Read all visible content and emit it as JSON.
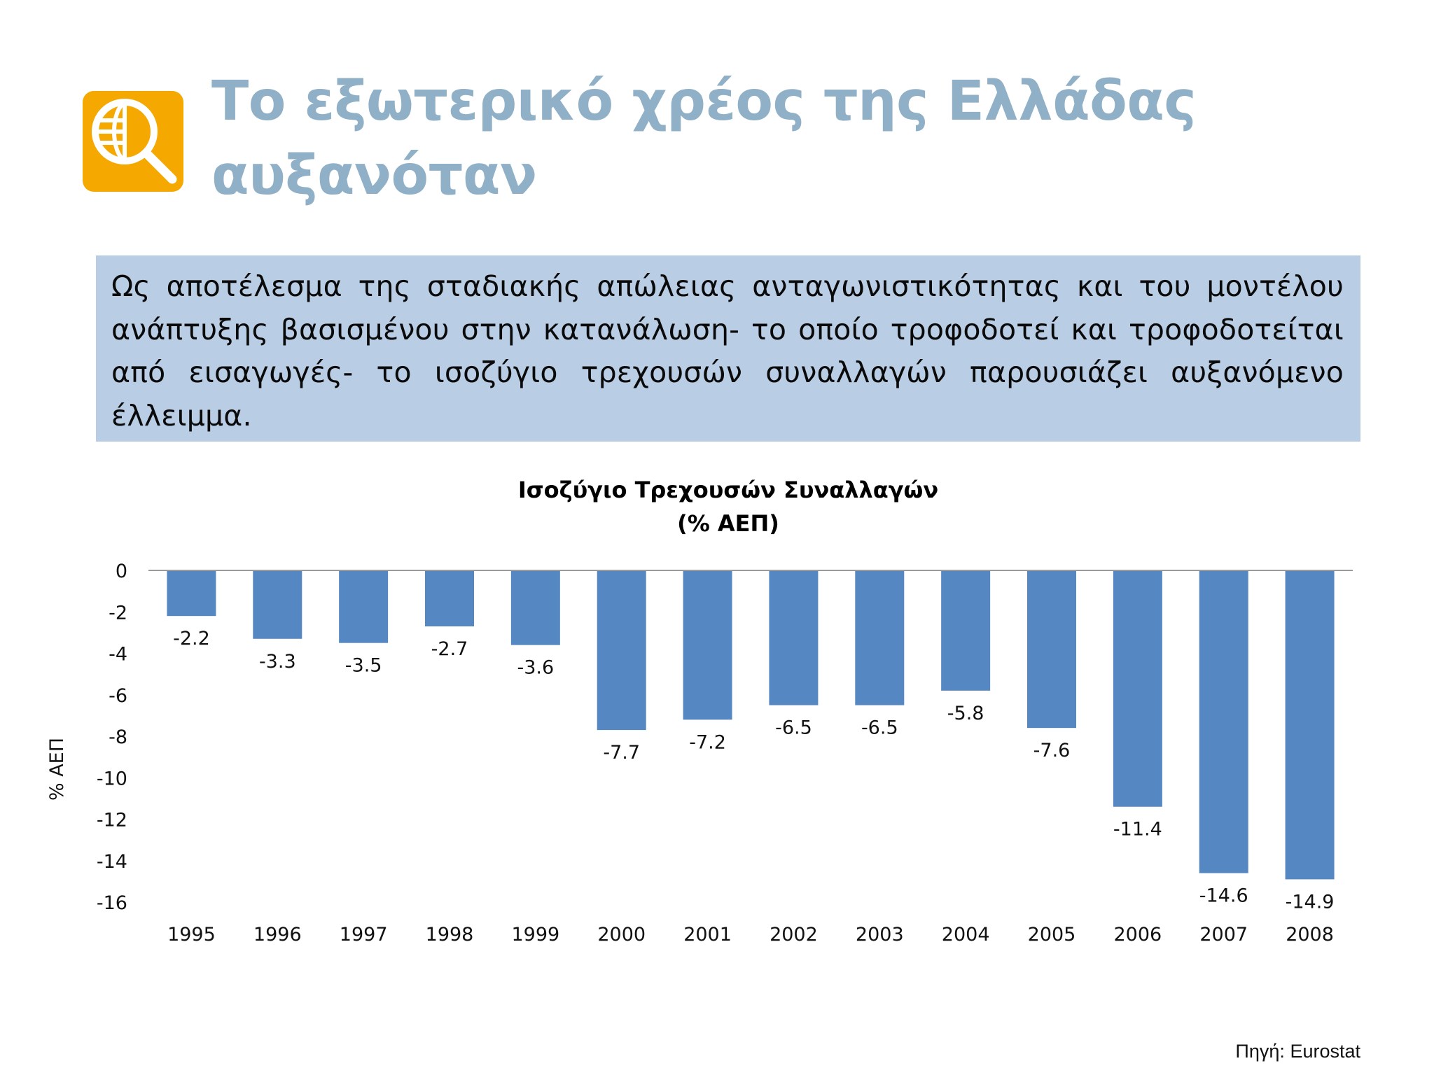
{
  "slide": {
    "title": "Το εξωτερικό χρέος της Ελλάδας αυξανόταν",
    "summary": "Ως αποτέλεσμα της σταδιακής απώλειας ανταγωνιστικότητας και του μοντέλου ανάπτυξης βασισμένου στην κατανάλωση- το οποίο τροφοδοτεί και τροφοδοτείται από εισαγωγές- το ισοζύγιο τρεχουσών συναλλαγών παρουσιάζει αυξανόμενο έλλειμμα.",
    "source": "Πηγή: Eurostat",
    "logo_icon": "globe-magnifier-icon",
    "accent_color": "#f5a800",
    "title_color": "#8fb0c6",
    "box_color": "#b9cde5"
  },
  "chart_data": {
    "type": "bar",
    "title": "Ισοζύγιο Τρεχουσών Συναλλαγών",
    "subtitle": "(% ΑΕΠ)",
    "ylabel": "% ΑΕΠ",
    "xlabel": "",
    "categories": [
      "1995",
      "1996",
      "1997",
      "1998",
      "1999",
      "2000",
      "2001",
      "2002",
      "2003",
      "2004",
      "2005",
      "2006",
      "2007",
      "2008"
    ],
    "values": [
      -2.2,
      -3.3,
      -3.5,
      -2.7,
      -3.6,
      -7.7,
      -7.2,
      -6.5,
      -6.5,
      -5.8,
      -7.6,
      -11.4,
      -14.6,
      -14.9
    ],
    "data_labels": [
      "-2.2",
      "-3.3",
      "-3.5",
      "-2.7",
      "-3.6",
      "-7.7",
      "-7.2",
      "-6.5",
      "-6.5",
      "-5.8",
      "-7.6",
      "-11.4",
      "-14.6",
      "-14.9"
    ],
    "ylim": [
      -16,
      0
    ],
    "yticks": [
      "0",
      "-2",
      "-4",
      "-6",
      "-8",
      "-10",
      "-12",
      "-14",
      "-16"
    ],
    "bar_color": "#5587c2",
    "grid": false,
    "legend": "none"
  }
}
